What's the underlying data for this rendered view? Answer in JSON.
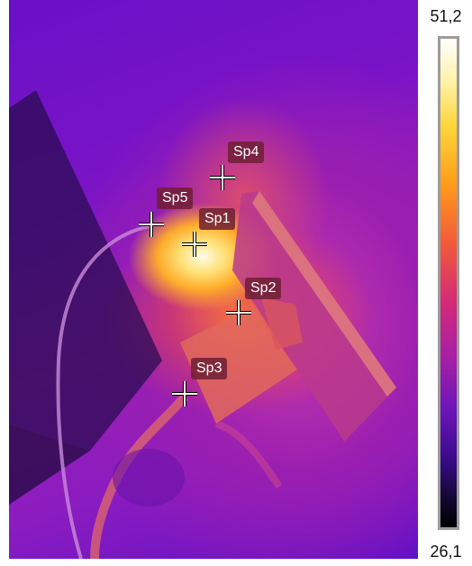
{
  "scale": {
    "max": "51,2",
    "min": "26,1"
  },
  "spots": [
    {
      "id": "sp1",
      "label": "Sp1"
    },
    {
      "id": "sp2",
      "label": "Sp2"
    },
    {
      "id": "sp3",
      "label": "Sp3"
    },
    {
      "id": "sp4",
      "label": "Sp4"
    },
    {
      "id": "sp5",
      "label": "Sp5"
    }
  ]
}
